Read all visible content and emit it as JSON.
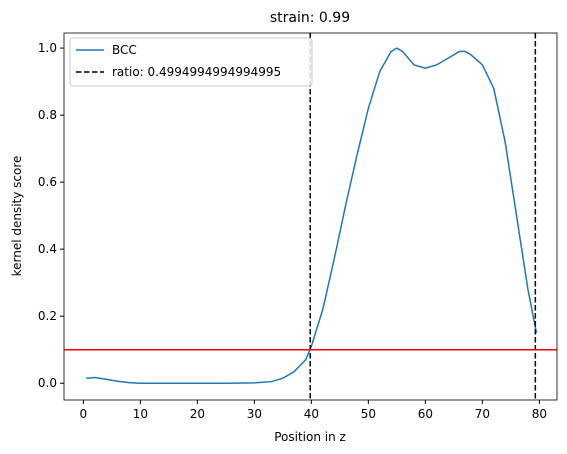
{
  "chart_data": {
    "type": "line",
    "title": "strain: 0.99",
    "x_label": "Position in z",
    "y_label": "kernel density score",
    "x": [
      0.5,
      2,
      4,
      6,
      8,
      10,
      15,
      20,
      25,
      30,
      33,
      35,
      37,
      39,
      40,
      42,
      44,
      46,
      48,
      50,
      52,
      54,
      55,
      56,
      58,
      60,
      62,
      64,
      66,
      67,
      68,
      70,
      72,
      74,
      76,
      78,
      79.5
    ],
    "series": [
      {
        "name": "BCC",
        "color": "#1f77b4",
        "values": [
          0.015,
          0.017,
          0.012,
          0.006,
          0.002,
          0.0,
          0.0,
          0.0,
          0.0,
          0.001,
          0.005,
          0.015,
          0.035,
          0.07,
          0.11,
          0.22,
          0.37,
          0.53,
          0.68,
          0.82,
          0.93,
          0.99,
          1.0,
          0.99,
          0.95,
          0.94,
          0.95,
          0.97,
          0.99,
          0.99,
          0.98,
          0.95,
          0.88,
          0.72,
          0.5,
          0.28,
          0.15
        ]
      }
    ],
    "vlines": {
      "name": "ratio: 0.4994994994994995",
      "color": "#000000",
      "values": [
        39.8,
        79.3
      ]
    },
    "hline": {
      "value": 0.1,
      "color": "#ff0000"
    },
    "xlim": [
      -3.4,
      83.1
    ],
    "ylim": [
      -0.05,
      1.045
    ],
    "xticks": [
      0,
      10,
      20,
      30,
      40,
      50,
      60,
      70,
      80
    ],
    "yticks": [
      {
        "value": 0,
        "label": "0.0"
      },
      0.2,
      0.4,
      0.6,
      0.8,
      {
        "value": 1,
        "label": "1.0"
      }
    ],
    "legend": "upper left"
  }
}
